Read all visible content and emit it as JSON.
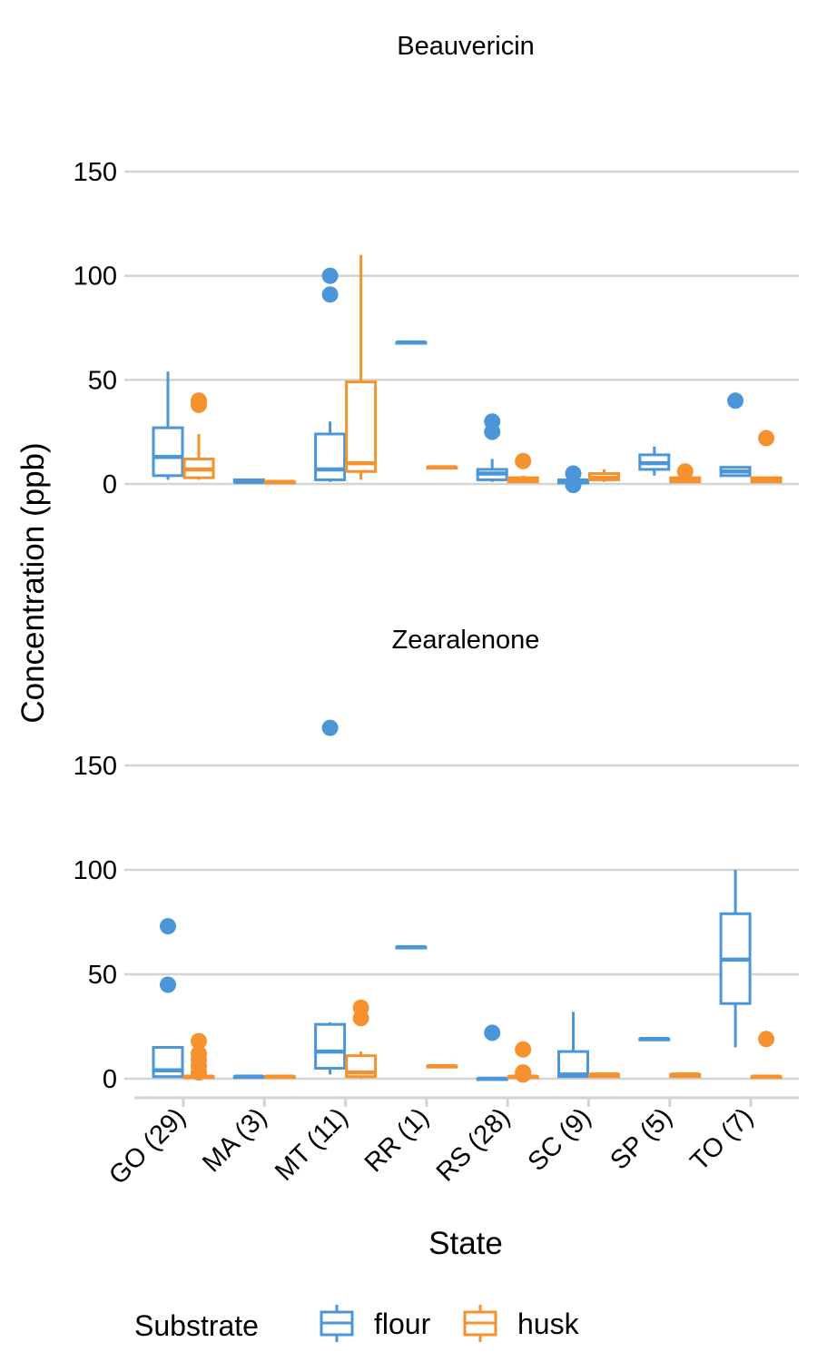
{
  "chart_data": {
    "type": "box",
    "xlabel": "State",
    "ylabel": "Concentration (ppb)",
    "categories": [
      "GO (29)",
      "MA (3)",
      "MT (11)",
      "RR (1)",
      "RS (28)",
      "SC (9)",
      "SP (5)",
      "TO (7)"
    ],
    "yticks": [
      0,
      50,
      100,
      150
    ],
    "ylim": [
      -8,
      162
    ],
    "grid": true,
    "legend": {
      "title": "Substrate",
      "position": "bottom",
      "entries": [
        {
          "label": "flour",
          "color": "#4B96D8"
        },
        {
          "label": "husk",
          "color": "#F5922E"
        }
      ]
    },
    "panels": [
      {
        "title": "Beauvericin",
        "series": [
          {
            "name": "flour",
            "color": "#4B96D8",
            "boxes": [
              {
                "category": "GO (29)",
                "min": 2,
                "q1": 4,
                "median": 13,
                "q3": 27,
                "max": 54,
                "outliers": []
              },
              {
                "category": "MA (3)",
                "min": 1,
                "q1": 1,
                "median": 1,
                "q3": 2,
                "max": 2,
                "outliers": []
              },
              {
                "category": "MT (11)",
                "min": 1,
                "q1": 2,
                "median": 7,
                "q3": 24,
                "max": 30,
                "outliers": [
                  91,
                  100
                ]
              },
              {
                "category": "RR (1)",
                "min": 68,
                "q1": 68,
                "median": 68,
                "q3": 68,
                "max": 68,
                "outliers": []
              },
              {
                "category": "RS (28)",
                "min": 1,
                "q1": 2,
                "median": 5,
                "q3": 7,
                "max": 12,
                "outliers": [
                  25,
                  30
                ]
              },
              {
                "category": "SC (9)",
                "min": 0,
                "q1": 0.5,
                "median": 1,
                "q3": 2,
                "max": 3,
                "outliers": [
                  -0.5,
                  5
                ]
              },
              {
                "category": "SP (5)",
                "min": 4,
                "q1": 7,
                "median": 10,
                "q3": 14,
                "max": 18,
                "outliers": []
              },
              {
                "category": "TO (7)",
                "min": 4,
                "q1": 4,
                "median": 6,
                "q3": 8,
                "max": 8,
                "outliers": [
                  40
                ]
              }
            ]
          },
          {
            "name": "husk",
            "color": "#F5922E",
            "boxes": [
              {
                "category": "GO (29)",
                "min": 2,
                "q1": 3,
                "median": 7,
                "q3": 12,
                "max": 24,
                "outliers": [
                  38,
                  40
                ]
              },
              {
                "category": "MA (3)",
                "min": 0,
                "q1": 0.5,
                "median": 1,
                "q3": 1,
                "max": 1,
                "outliers": []
              },
              {
                "category": "MT (11)",
                "min": 2,
                "q1": 6,
                "median": 10,
                "q3": 49,
                "max": 110,
                "outliers": []
              },
              {
                "category": "RR (1)",
                "min": 8,
                "q1": 8,
                "median": 8,
                "q3": 8,
                "max": 8,
                "outliers": []
              },
              {
                "category": "RS (28)",
                "min": 1,
                "q1": 1,
                "median": 2,
                "q3": 3,
                "max": 4,
                "outliers": [
                  11
                ]
              },
              {
                "category": "SC (9)",
                "min": 1,
                "q1": 2,
                "median": 3,
                "q3": 5,
                "max": 7,
                "outliers": []
              },
              {
                "category": "SP (5)",
                "min": 1,
                "q1": 1,
                "median": 2,
                "q3": 3,
                "max": 3,
                "outliers": [
                  6
                ]
              },
              {
                "category": "TO (7)",
                "min": 1,
                "q1": 1,
                "median": 2,
                "q3": 3,
                "max": 3,
                "outliers": [
                  22
                ]
              }
            ]
          }
        ]
      },
      {
        "title": "Zearalenone",
        "series": [
          {
            "name": "flour",
            "color": "#4B96D8",
            "boxes": [
              {
                "category": "GO (29)",
                "min": 1,
                "q1": 1,
                "median": 4,
                "q3": 15,
                "max": 15,
                "outliers": [
                  45,
                  73
                ]
              },
              {
                "category": "MA (3)",
                "min": 1,
                "q1": 1,
                "median": 1,
                "q3": 1,
                "max": 1,
                "outliers": []
              },
              {
                "category": "MT (11)",
                "min": 2,
                "q1": 5,
                "median": 13,
                "q3": 26,
                "max": 27,
                "outliers": [
                  168
                ]
              },
              {
                "category": "RR (1)",
                "min": 63,
                "q1": 63,
                "median": 63,
                "q3": 63,
                "max": 63,
                "outliers": []
              },
              {
                "category": "RS (28)",
                "min": 0,
                "q1": 0,
                "median": 0,
                "q3": 0,
                "max": 0,
                "outliers": [
                  22
                ]
              },
              {
                "category": "SC (9)",
                "min": 1,
                "q1": 1,
                "median": 2,
                "q3": 13,
                "max": 32,
                "outliers": []
              },
              {
                "category": "SP (5)",
                "min": 19,
                "q1": 19,
                "median": 19,
                "q3": 19,
                "max": 19,
                "outliers": []
              },
              {
                "category": "TO (7)",
                "min": 15,
                "q1": 36,
                "median": 57,
                "q3": 79,
                "max": 100,
                "outliers": []
              }
            ]
          },
          {
            "name": "husk",
            "color": "#F5922E",
            "boxes": [
              {
                "category": "GO (29)",
                "min": 0,
                "q1": 0.5,
                "median": 1,
                "q3": 1,
                "max": 2,
                "outliers": [
                  3,
                  6,
                  9,
                  12,
                  18
                ]
              },
              {
                "category": "MA (3)",
                "min": 1,
                "q1": 1,
                "median": 1,
                "q3": 1,
                "max": 1,
                "outliers": []
              },
              {
                "category": "MT (11)",
                "min": 0,
                "q1": 1,
                "median": 3,
                "q3": 11,
                "max": 13,
                "outliers": [
                  29,
                  34
                ]
              },
              {
                "category": "RR (1)",
                "min": 6,
                "q1": 6,
                "median": 6,
                "q3": 6,
                "max": 6,
                "outliers": []
              },
              {
                "category": "RS (28)",
                "min": 0,
                "q1": 0.5,
                "median": 1,
                "q3": 1,
                "max": 2,
                "outliers": [
                  2,
                  3,
                  14
                ]
              },
              {
                "category": "SC (9)",
                "min": 1,
                "q1": 1,
                "median": 2,
                "q3": 2,
                "max": 3,
                "outliers": []
              },
              {
                "category": "SP (5)",
                "min": 1,
                "q1": 1,
                "median": 2,
                "q3": 2,
                "max": 3,
                "outliers": []
              },
              {
                "category": "TO (7)",
                "min": 1,
                "q1": 1,
                "median": 1,
                "q3": 1,
                "max": 1,
                "outliers": [
                  19
                ]
              }
            ]
          }
        ]
      }
    ]
  }
}
